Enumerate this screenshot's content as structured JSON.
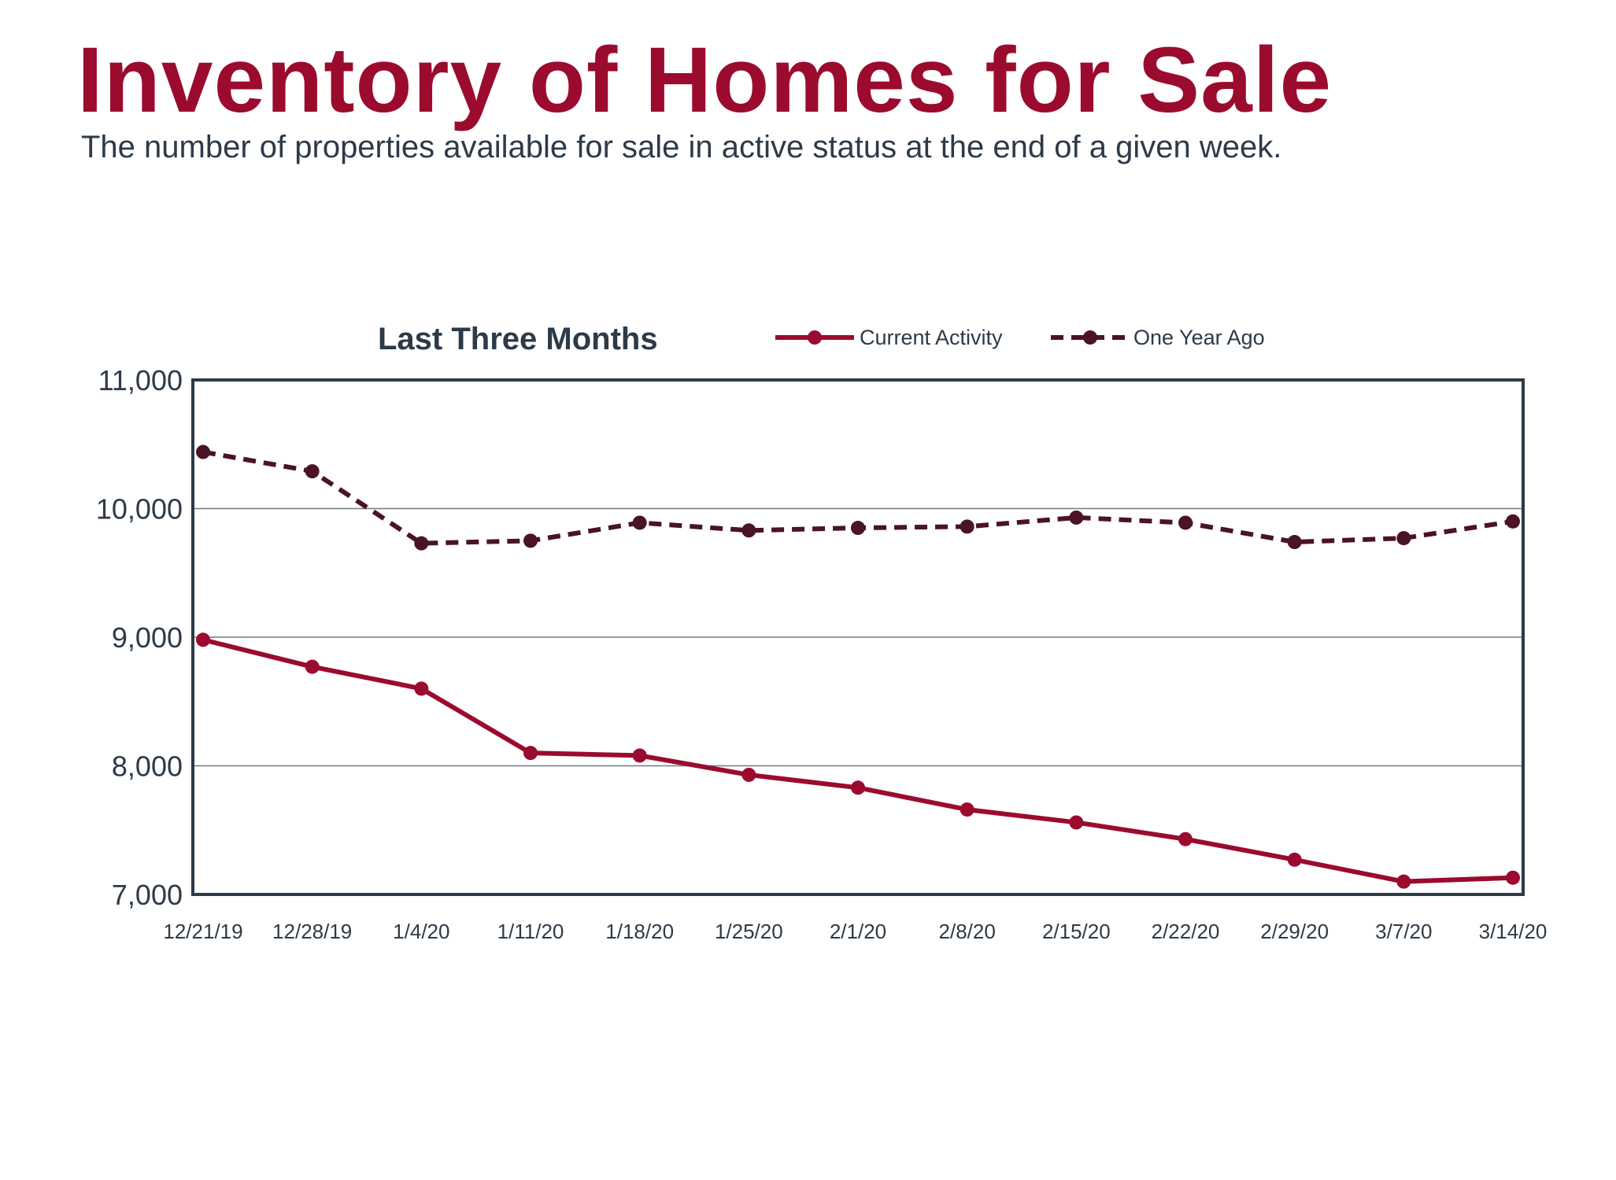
{
  "header": {
    "title": "Inventory of Homes for Sale",
    "subtitle": "The number of properties available for sale in active status at the end of a given week."
  },
  "chart_data": {
    "type": "line",
    "title": "Last Three Months",
    "xlabel": "",
    "ylabel": "",
    "categories": [
      "12/21/19",
      "12/28/19",
      "1/4/20",
      "1/11/20",
      "1/18/20",
      "1/25/20",
      "2/1/20",
      "2/8/20",
      "2/15/20",
      "2/22/20",
      "2/29/20",
      "3/7/20",
      "3/14/20"
    ],
    "series": [
      {
        "name": "Current Activity",
        "style": "solid",
        "color": "#9b0b2e",
        "values": [
          8980,
          8770,
          8600,
          8100,
          8080,
          7930,
          7830,
          7660,
          7560,
          7430,
          7270,
          7100,
          7130
        ]
      },
      {
        "name": "One Year Ago",
        "style": "dashed",
        "color": "#4a1326",
        "values": [
          10440,
          10290,
          9730,
          9750,
          9890,
          9830,
          9850,
          9860,
          9930,
          9890,
          9740,
          9770,
          9900
        ]
      }
    ],
    "ylim": [
      7000,
      11000
    ],
    "yticks": [
      7000,
      8000,
      9000,
      10000,
      11000
    ],
    "ytick_labels": [
      "7,000",
      "8,000",
      "9,000",
      "10,000",
      "11,000"
    ],
    "grid": true,
    "legend_position": "top"
  }
}
